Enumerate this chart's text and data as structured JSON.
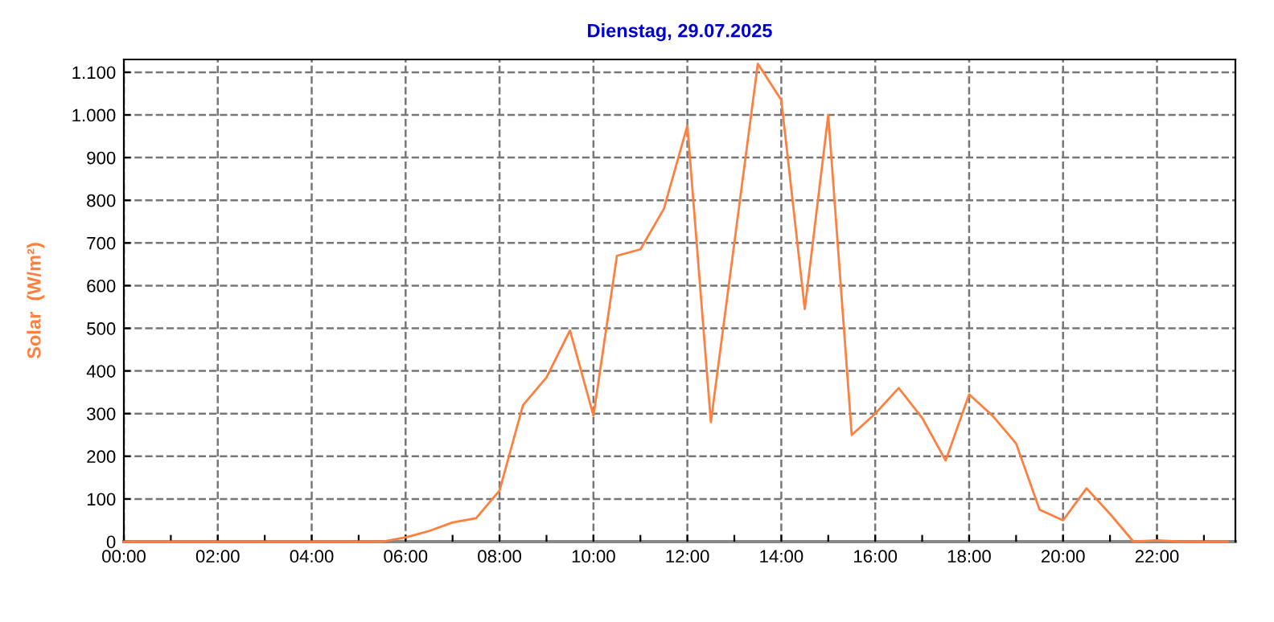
{
  "chart_data": {
    "type": "line",
    "title": "Dienstag, 29.07.2025",
    "ylabel": "Solar  (W/m²)",
    "x": [
      0,
      0.5,
      1,
      1.5,
      2,
      2.5,
      3,
      3.5,
      4,
      4.5,
      5,
      5.5,
      6,
      6.5,
      7,
      7.5,
      8,
      8.5,
      9,
      9.5,
      10,
      10.5,
      11,
      11.5,
      12,
      12.5,
      13,
      13.5,
      14,
      14.5,
      15,
      15.5,
      16,
      16.5,
      17,
      17.5,
      18,
      18.5,
      19,
      19.5,
      20,
      20.5,
      21,
      21.5,
      22,
      22.5,
      23,
      23.5
    ],
    "series": [
      {
        "color": "#ff7f3f",
        "values": [
          0,
          0,
          0,
          0,
          0,
          0,
          0,
          0,
          0,
          0,
          0,
          0,
          10,
          25,
          45,
          55,
          120,
          320,
          385,
          495,
          295,
          670,
          685,
          780,
          975,
          280,
          700,
          1120,
          1035,
          545,
          1000,
          250,
          300,
          360,
          290,
          190,
          345,
          295,
          230,
          75,
          50,
          125,
          65,
          0,
          3,
          0,
          0,
          0
        ]
      }
    ],
    "xlim": [
      0,
      23.67
    ],
    "ylim": [
      0,
      1130
    ],
    "xticks": [
      {
        "value": 0,
        "label": "00:00"
      },
      {
        "value": 1,
        "label": null
      },
      {
        "value": 2,
        "label": "02:00"
      },
      {
        "value": 3,
        "label": null
      },
      {
        "value": 4,
        "label": "04:00"
      },
      {
        "value": 5,
        "label": null
      },
      {
        "value": 6,
        "label": "06:00"
      },
      {
        "value": 7,
        "label": null
      },
      {
        "value": 8,
        "label": "08:00"
      },
      {
        "value": 9,
        "label": null
      },
      {
        "value": 10,
        "label": "10:00"
      },
      {
        "value": 11,
        "label": null
      },
      {
        "value": 12,
        "label": "12:00"
      },
      {
        "value": 13,
        "label": null
      },
      {
        "value": 14,
        "label": "14:00"
      },
      {
        "value": 15,
        "label": null
      },
      {
        "value": 16,
        "label": "16:00"
      },
      {
        "value": 17,
        "label": null
      },
      {
        "value": 18,
        "label": "18:00"
      },
      {
        "value": 19,
        "label": null
      },
      {
        "value": 20,
        "label": "20:00"
      },
      {
        "value": 21,
        "label": null
      },
      {
        "value": 22,
        "label": "22:00"
      },
      {
        "value": 23,
        "label": null
      }
    ],
    "yticks": [
      0,
      100,
      200,
      300,
      400,
      500,
      600,
      700,
      800,
      900,
      {
        "value": 1000,
        "label": "1.000"
      },
      {
        "value": 1100,
        "label": "1.100"
      }
    ],
    "grid": true,
    "marker": "none",
    "line_style": "solid"
  }
}
